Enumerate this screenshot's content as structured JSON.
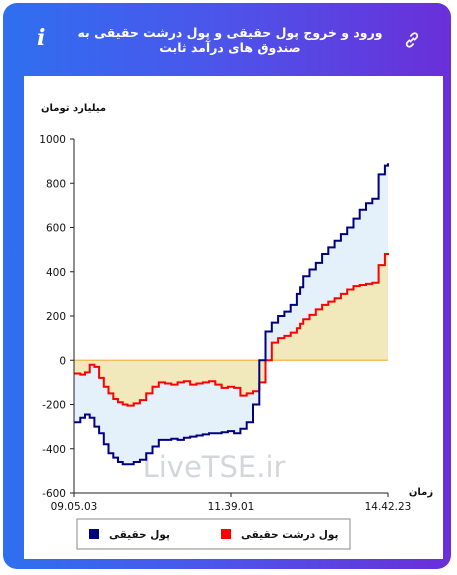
{
  "header": {
    "title": "ورود و خروج پول حقیقی و پول درشت حقیقی به صندوق های درآمد ثابت",
    "info_icon": "i"
  },
  "watermark": "LiveTSE.ir",
  "colors": {
    "real_money": "#000080",
    "big_real_money": "#ff0000",
    "fill_upper": "#e4f1fb",
    "fill_lower": "#f1e9bb",
    "header_start": "#2f6ff0",
    "header_end": "#6a2fd9"
  },
  "chart_data": {
    "type": "line",
    "ylabel": "میلیارد تومان",
    "xlabel": "زمان",
    "ylim": [
      -600,
      1000
    ],
    "yticks": [
      -600,
      -400,
      -200,
      0,
      200,
      400,
      600,
      800,
      1000
    ],
    "xticks": [
      "09.05.03",
      "11.39.01",
      "14.42.23"
    ],
    "x": [
      0,
      0.02,
      0.035,
      0.05,
      0.065,
      0.08,
      0.095,
      0.11,
      0.125,
      0.14,
      0.155,
      0.17,
      0.19,
      0.21,
      0.23,
      0.25,
      0.27,
      0.29,
      0.31,
      0.33,
      0.35,
      0.37,
      0.39,
      0.41,
      0.43,
      0.45,
      0.47,
      0.49,
      0.51,
      0.53,
      0.55,
      0.57,
      0.59,
      0.61,
      0.63,
      0.65,
      0.67,
      0.69,
      0.71,
      0.72,
      0.73,
      0.75,
      0.77,
      0.79,
      0.81,
      0.83,
      0.85,
      0.87,
      0.89,
      0.91,
      0.93,
      0.95,
      0.97,
      0.99,
      1.0
    ],
    "series": [
      {
        "name": "پول حقیقی",
        "color": "#000080",
        "values": [
          -280,
          -260,
          -245,
          -260,
          -300,
          -330,
          -380,
          -420,
          -440,
          -460,
          -470,
          -470,
          -460,
          -450,
          -420,
          -390,
          -360,
          -360,
          -355,
          -360,
          -350,
          -345,
          -340,
          -335,
          -330,
          -330,
          -325,
          -320,
          -330,
          -310,
          -280,
          -200,
          0,
          130,
          170,
          200,
          220,
          250,
          300,
          330,
          380,
          410,
          440,
          480,
          510,
          540,
          570,
          600,
          640,
          680,
          710,
          730,
          840,
          880,
          890
        ]
      },
      {
        "name": "پول درشت حقیقی",
        "color": "#ff0000",
        "values": [
          -60,
          -65,
          -55,
          -20,
          -30,
          -80,
          -120,
          -150,
          -175,
          -190,
          -200,
          -205,
          -195,
          -180,
          -150,
          -120,
          -100,
          -105,
          -110,
          -100,
          -95,
          -110,
          -105,
          -100,
          -95,
          -110,
          -125,
          -120,
          -125,
          -160,
          -150,
          -140,
          -100,
          0,
          80,
          100,
          110,
          125,
          145,
          165,
          185,
          205,
          230,
          250,
          265,
          280,
          300,
          320,
          335,
          340,
          345,
          350,
          430,
          480,
          485
        ]
      }
    ],
    "legend_position": "bottom"
  }
}
